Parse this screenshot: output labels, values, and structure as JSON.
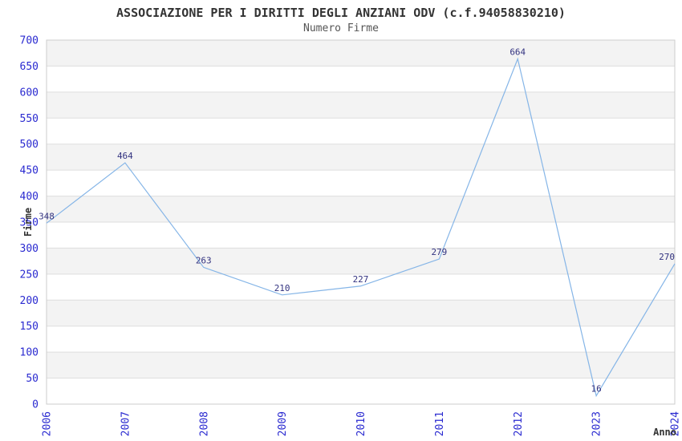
{
  "style": {
    "background": "#ffffff",
    "band_color": "#f3f3f3",
    "grid_color": "#dedede",
    "border_color": "#cccccc",
    "line_color": "#85b5e7",
    "tick_label_color": "#2a2ad0",
    "point_label_color": "#333380",
    "title_color": "#333333",
    "subtitle_color": "#555555",
    "axis_title_color": "#333333"
  },
  "chart_data": {
    "type": "line",
    "title": "ASSOCIAZIONE PER I DIRITTI DEGLI ANZIANI ODV (c.f.94058830210)",
    "subtitle": "Numero Firme",
    "xlabel": "Anno",
    "ylabel": "Firme",
    "categories": [
      "2006",
      "2007",
      "2008",
      "2009",
      "2010",
      "2011",
      "2012",
      "2023",
      "2024"
    ],
    "series": [
      {
        "name": "Numero Firme",
        "values": [
          348,
          464,
          263,
          210,
          227,
          279,
          664,
          16,
          270
        ]
      }
    ],
    "point_labels": [
      "348",
      "464",
      "263",
      "210",
      "227",
      "279",
      "664",
      "16",
      "270"
    ],
    "ylim": [
      0,
      700
    ],
    "ytick_step": 50,
    "yticks": [
      0,
      50,
      100,
      150,
      200,
      250,
      300,
      350,
      400,
      450,
      500,
      550,
      600,
      650,
      700
    ],
    "grid": true,
    "banded_rows": true,
    "legend_position": "none",
    "point_labels_visible": true
  }
}
